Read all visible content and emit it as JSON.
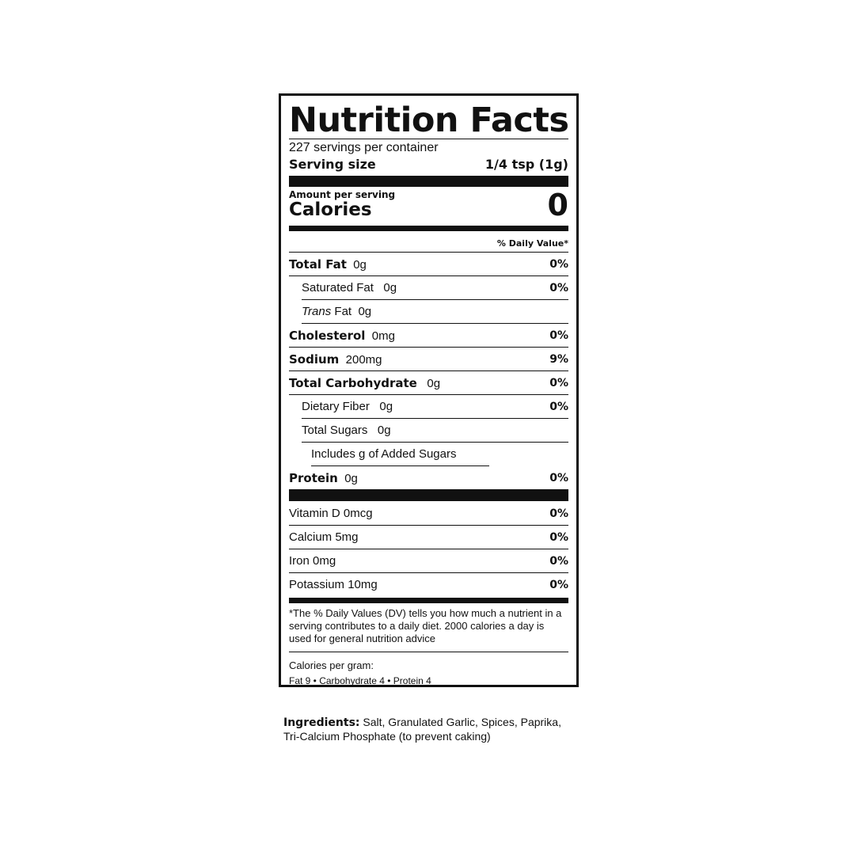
{
  "title": "Nutrition Facts",
  "servings_per_container": "227 servings per container",
  "serving_size_label": "Serving size",
  "serving_size_value": "1/4 tsp (1g)",
  "amount_per_serving": "Amount per serving",
  "calories_label": "Calories",
  "calories_value": "0",
  "daily_value_header": "% Daily Value*",
  "nutrients": [
    {
      "name": "Total Fat",
      "amount": "0g",
      "dv": "0%"
    },
    {
      "name": "Saturated Fat",
      "amount": "0g",
      "dv": "0%"
    },
    {
      "name": "Trans",
      "name_suffix": "Fat",
      "amount": "0g",
      "dv": ""
    },
    {
      "name": "Cholesterol",
      "amount": "0mg",
      "dv": "0%"
    },
    {
      "name": "Sodium",
      "amount": "200mg",
      "dv": "9%"
    },
    {
      "name": "Total Carbohydrate",
      "amount": "0g",
      "dv": "0%"
    },
    {
      "name": "Dietary Fiber",
      "amount": "0g",
      "dv": "0%"
    },
    {
      "name": "Total Sugars",
      "amount": "0g",
      "dv": ""
    },
    {
      "name": "Includes g of Added Sugars",
      "amount": "",
      "dv": ""
    },
    {
      "name": "Protein",
      "amount": "0g",
      "dv": "0%"
    }
  ],
  "vitamins": [
    {
      "name": "Vitamin D 0mcg",
      "dv": "0%"
    },
    {
      "name": "Calcium 5mg",
      "dv": "0%"
    },
    {
      "name": "Iron 0mg",
      "dv": "0%"
    },
    {
      "name": "Potassium 10mg",
      "dv": "0%"
    }
  ],
  "footnote": "*The % Daily Values (DV) tells you how much a nutrient in a serving contributes to a daily diet. 2000 calories a day is used for general nutrition advice",
  "calories_per_gram_label": "Calories per gram:",
  "calories_per_gram": "Fat 9 • Carbohydrate 4 • Protein 4",
  "ingredients_label": "Ingredients:",
  "ingredients_text": " Salt, Granulated Garlic, Spices, Paprika, Tri-Calcium Phosphate (to prevent caking)"
}
